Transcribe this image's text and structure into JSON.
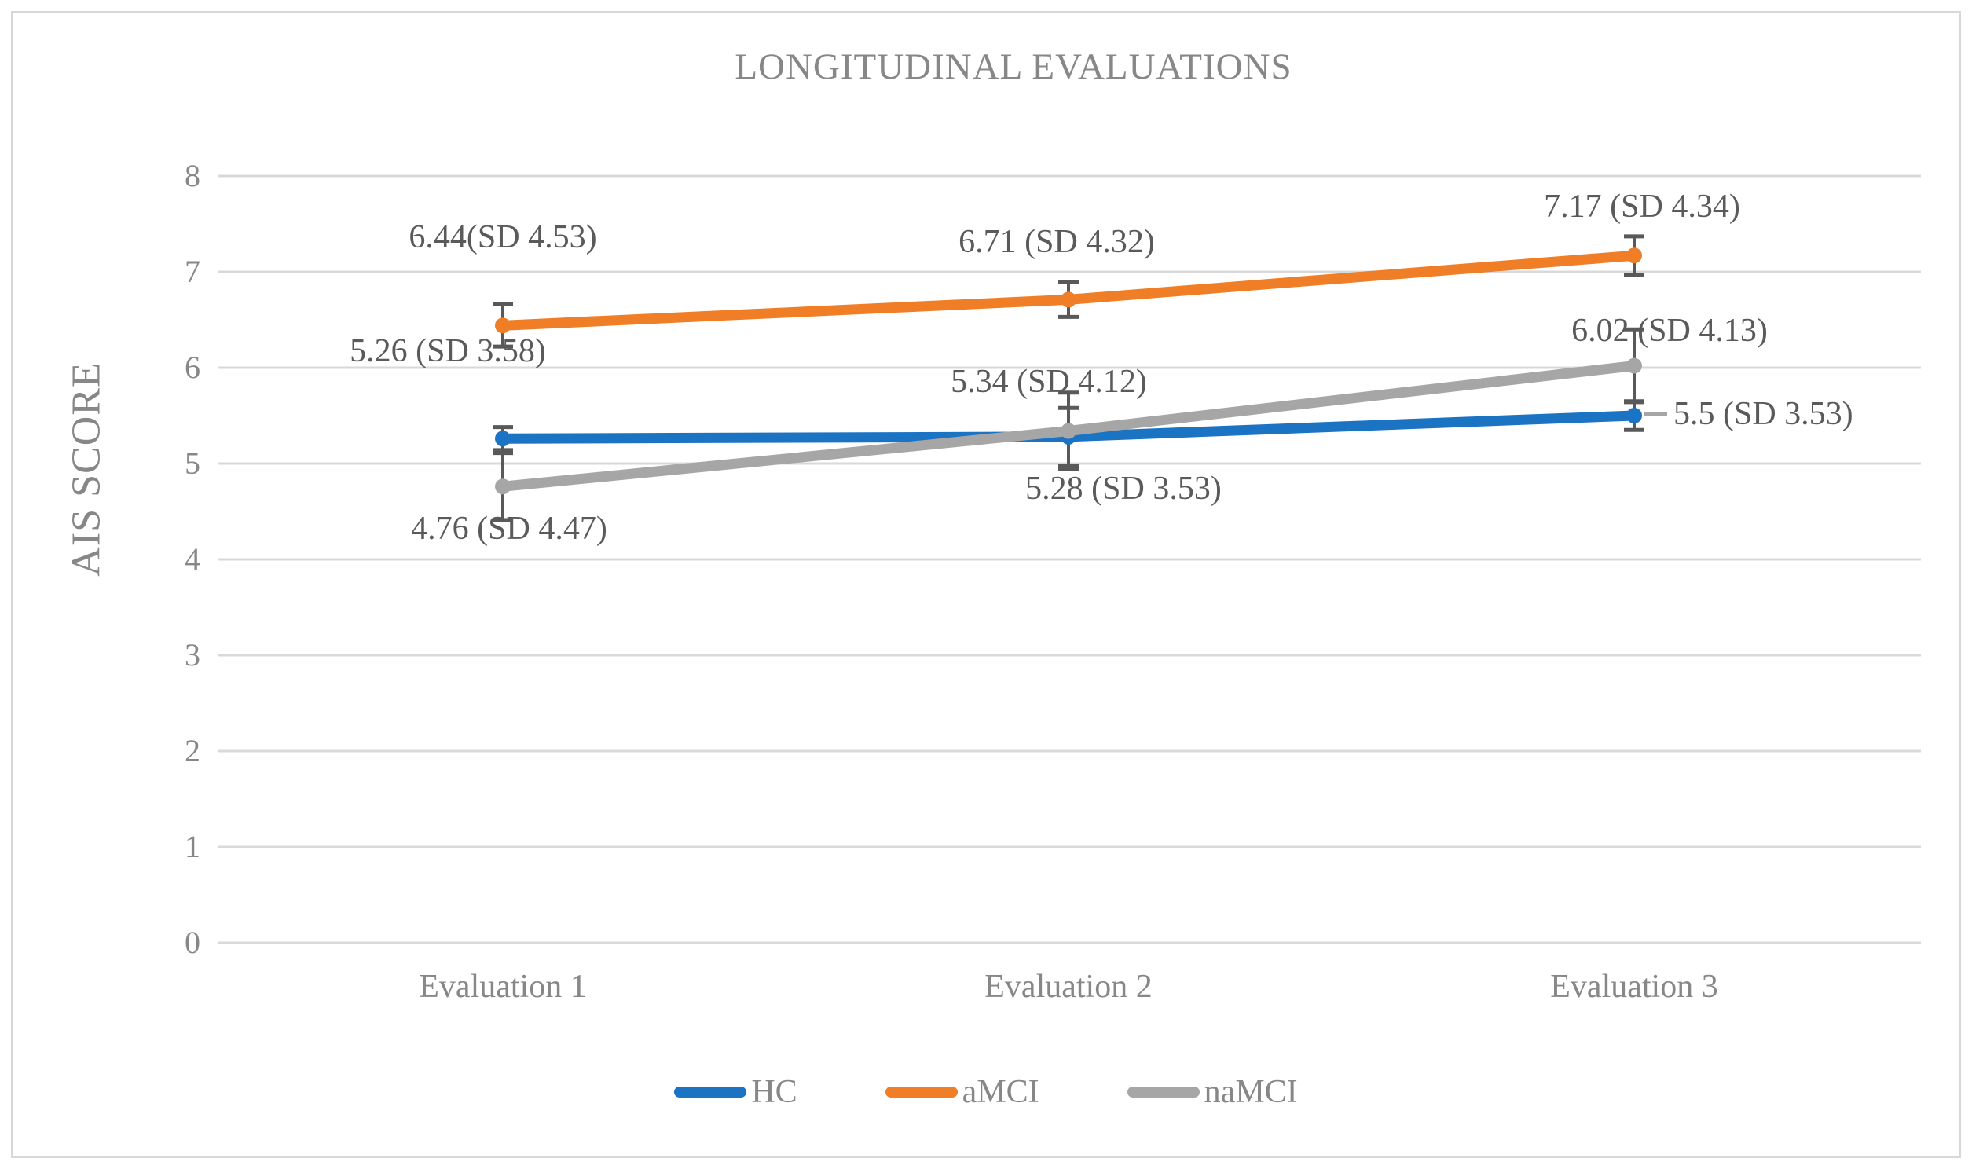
{
  "chart_data": {
    "type": "line",
    "title": "LONGITUDINAL EVALUATIONS",
    "xlabel": "",
    "ylabel": "AIS SCORE",
    "categories": [
      "Evaluation 1",
      "Evaluation 2",
      "Evaluation 3"
    ],
    "ylim": [
      0,
      8
    ],
    "yticks": [
      8,
      7,
      6,
      5,
      4,
      3,
      2,
      1,
      0
    ],
    "grid": true,
    "legend_position": "bottom",
    "gridline_color": "#d9d9d9",
    "error_bar_color": "#595959",
    "axis_text_color": "#878787",
    "data_label_color": "#5a5a5a",
    "series": [
      {
        "name": "HC",
        "color": "#1b73c4",
        "values": [
          5.26,
          5.28,
          5.5
        ],
        "errors": [
          0.12,
          0.3,
          0.15
        ],
        "labels": [
          {
            "text": "5.26 (SD 3.58)",
            "dx": -70,
            "dy": -111,
            "anchor": "center"
          },
          {
            "text": "5.28 (SD 3.53)",
            "dx": 70,
            "dy": 66,
            "anchor": "center"
          },
          {
            "text": "5.5 (SD 3.53)",
            "dx": 50,
            "dy": -2,
            "anchor": "left",
            "leader": true
          }
        ]
      },
      {
        "name": "aMCI",
        "color": "#f07e27",
        "values": [
          6.44,
          6.71,
          7.17
        ],
        "errors": [
          0.22,
          0.18,
          0.2
        ],
        "labels": [
          {
            "text": "6.44(SD 4.53)",
            "dx": 0,
            "dy": -112,
            "anchor": "center"
          },
          {
            "text": "6.71 (SD 4.32)",
            "dx": -15,
            "dy": -73,
            "anchor": "center"
          },
          {
            "text": "7.17 (SD 4.34)",
            "dx": 10,
            "dy": -62,
            "anchor": "center"
          }
        ]
      },
      {
        "name": "naMCI",
        "color": "#a6a6a6",
        "values": [
          4.76,
          5.34,
          6.02
        ],
        "errors": [
          0.35,
          0.4,
          0.38
        ],
        "labels": [
          {
            "text": "4.76 (SD 4.47)",
            "dx": 8,
            "dy": 54,
            "anchor": "center"
          },
          {
            "text": "5.34 (SD 4.12)",
            "dx": -25,
            "dy": -63,
            "anchor": "center"
          },
          {
            "text": "6.02 (SD 4.13)",
            "dx": 45,
            "dy": -45,
            "anchor": "center"
          }
        ]
      }
    ]
  },
  "legend": {
    "items": [
      {
        "label": "HC",
        "color": "#1b73c4"
      },
      {
        "label": "aMCI",
        "color": "#f07e27"
      },
      {
        "label": "naMCI",
        "color": "#a6a6a6"
      }
    ]
  }
}
